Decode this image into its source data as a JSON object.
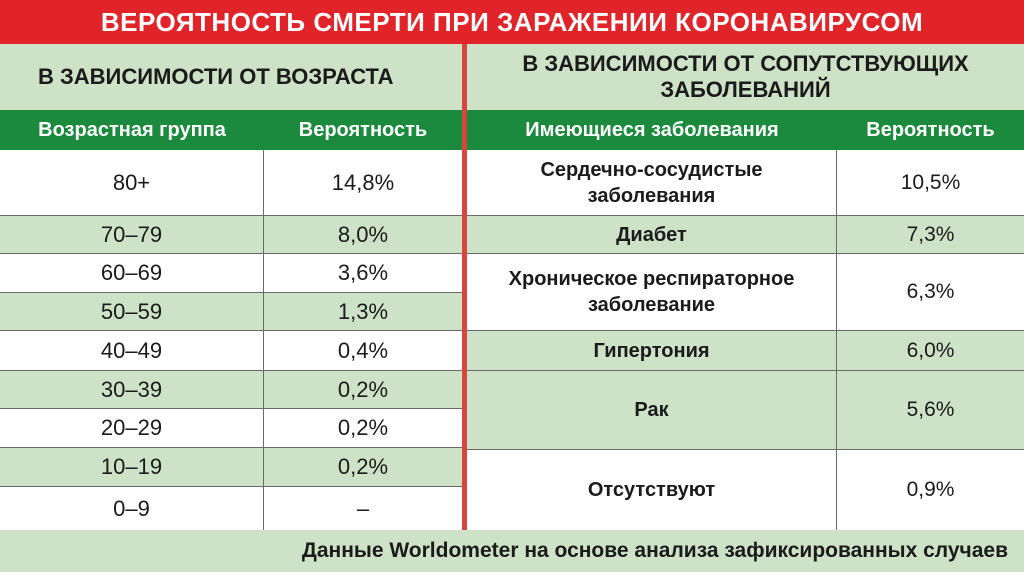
{
  "title": "ВЕРОЯТНОСТЬ СМЕРТИ ПРИ ЗАРАЖЕНИИ КОРОНАВИРУСОМ",
  "colors": {
    "title_bg": "#e0242a",
    "header_bg": "#1b8a3c",
    "row_green": "#cde2c6",
    "divider": "#d6453f"
  },
  "age_table": {
    "section_title": "В ЗАВИСИМОСТИ ОТ ВОЗРАСТА",
    "col_group": "Возрастная группа",
    "col_prob": "Вероятность",
    "rows": [
      {
        "group": "80+",
        "prob": "14,8%"
      },
      {
        "group": "70–79",
        "prob": "8,0%"
      },
      {
        "group": "60–69",
        "prob": "3,6%"
      },
      {
        "group": "50–59",
        "prob": "1,3%"
      },
      {
        "group": "40–49",
        "prob": "0,4%"
      },
      {
        "group": "30–39",
        "prob": "0,2%"
      },
      {
        "group": "20–29",
        "prob": "0,2%"
      },
      {
        "group": "10–19",
        "prob": "0,2%"
      },
      {
        "group": "0–9",
        "prob": "–"
      }
    ]
  },
  "disease_table": {
    "section_title_line1": "В ЗАВИСИМОСТИ ОТ СОПУТСТВУЮЩИХ",
    "section_title_line2": "ЗАБОЛЕВАНИЙ",
    "col_disease": "Имеющиеся заболевания",
    "col_prob": "Вероятность",
    "rows": [
      {
        "disease_line1": "Сердечно-сосудистые",
        "disease_line2": "заболевания",
        "prob": "10,5%"
      },
      {
        "disease_line1": "Диабет",
        "disease_line2": "",
        "prob": "7,3%"
      },
      {
        "disease_line1": "Хроническое респираторное",
        "disease_line2": "заболевание",
        "prob": "6,3%"
      },
      {
        "disease_line1": "Гипертония",
        "disease_line2": "",
        "prob": "6,0%"
      },
      {
        "disease_line1": "Рак",
        "disease_line2": "",
        "prob": "5,6%"
      },
      {
        "disease_line1": "Отсутствуют",
        "disease_line2": "",
        "prob": "0,9%"
      }
    ]
  },
  "footer": "Данные Worldometer на основе анализа зафиксированных случаев"
}
